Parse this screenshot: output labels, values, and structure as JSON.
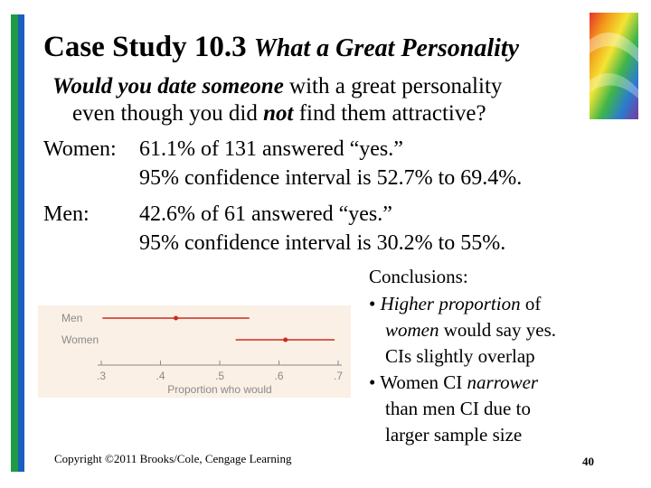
{
  "slide": {
    "title_bold": "Case Study 10.3",
    "title_italic": "What a Great Personality",
    "question": {
      "part1": "Would you date someone",
      "part2": "with a great personality",
      "part3": "even though you did",
      "part4": "not",
      "part5": "find them attractive?"
    },
    "women_label": "Women:",
    "women_line1": "61.1% of 131 answered “yes.”",
    "women_line2": "95% confidence interval is 52.7% to 69.4%.",
    "men_label": "Men:",
    "men_line1": "42.6% of 61 answered “yes.”",
    "men_line2": "95% confidence interval is 30.2% to 55%.",
    "conclusions": {
      "heading": "Conclusions:",
      "bullet": "•",
      "b1_ital": "Higher proportion",
      "b1_rest": "of",
      "b1_l2_ital": "women",
      "b1_l2_rest": "would say yes.",
      "b1_l3": "CIs slightly overlap",
      "b2_l1": "Women CI",
      "b2_l1_ital": "narrower",
      "b2_l2": "than men CI due to",
      "b2_l3": "larger sample size"
    },
    "copyright": "Copyright ©2011 Brooks/Cole, Cengage Learning",
    "page_number": "40"
  },
  "chart_data": {
    "type": "interval",
    "categories": [
      "Men",
      "Women"
    ],
    "series": [
      {
        "name": "Men",
        "estimate": 0.426,
        "lower": 0.302,
        "upper": 0.55
      },
      {
        "name": "Women",
        "estimate": 0.611,
        "lower": 0.527,
        "upper": 0.694
      }
    ],
    "xlabel": "Proportion who would",
    "xticks": [
      ".3",
      ".4",
      ".5",
      ".6",
      ".7"
    ],
    "xtick_values": [
      0.3,
      0.4,
      0.5,
      0.6,
      0.7
    ],
    "xlim": [
      0.3,
      0.7
    ],
    "colors": {
      "interval": "#cc2a1e",
      "axis": "#8a8a8a",
      "label": "#8a8a8a",
      "background": "#fbf0e5"
    }
  }
}
